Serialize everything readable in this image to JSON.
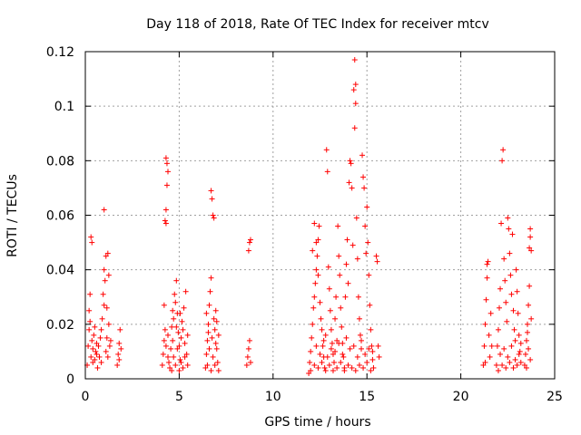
{
  "chart_data": {
    "type": "scatter",
    "title": "Day 118 of 2018, Rate Of TEC Index for receiver mtcv",
    "xlabel": "GPS time / hours",
    "ylabel": "ROTI / TECUs",
    "xlim": [
      0,
      25
    ],
    "ylim": [
      0,
      0.12
    ],
    "xticks": [
      0,
      5,
      10,
      15,
      20,
      25
    ],
    "yticks": [
      0,
      0.02,
      0.04,
      0.06,
      0.08,
      0.1,
      0.12
    ],
    "xtick_labels": [
      "0",
      "5",
      "10",
      "15",
      "20",
      "25"
    ],
    "ytick_labels": [
      "0",
      "0.02",
      "0.04",
      "0.06",
      "0.08",
      "0.1",
      "0.12"
    ],
    "grid": true,
    "marker": "+",
    "marker_color": "#ff0000",
    "series": [
      {
        "points": [
          [
            0.1,
            0.005
          ],
          [
            0.15,
            0.012
          ],
          [
            0.2,
            0.018
          ],
          [
            0.2,
            0.025
          ],
          [
            0.25,
            0.031
          ],
          [
            0.3,
            0.052
          ],
          [
            0.35,
            0.05
          ],
          [
            0.3,
            0.008
          ],
          [
            0.4,
            0.011
          ],
          [
            0.45,
            0.016
          ],
          [
            0.5,
            0.007
          ],
          [
            0.55,
            0.01
          ],
          [
            0.6,
            0.013
          ],
          [
            0.25,
            0.021
          ],
          [
            0.35,
            0.014
          ],
          [
            0.4,
            0.006
          ],
          [
            0.5,
            0.019
          ],
          [
            0.6,
            0.009
          ],
          [
            0.65,
            0.004
          ],
          [
            0.7,
            0.012
          ],
          [
            0.75,
            0.008
          ],
          [
            0.8,
            0.015
          ],
          [
            0.85,
            0.006
          ],
          [
            0.9,
            0.022
          ],
          [
            0.95,
            0.031
          ],
          [
            1.0,
            0.062
          ],
          [
            1.0,
            0.04
          ],
          [
            1.05,
            0.036
          ],
          [
            1.1,
            0.045
          ],
          [
            1.15,
            0.026
          ],
          [
            1.2,
            0.046
          ],
          [
            1.25,
            0.038
          ],
          [
            1.1,
            0.01
          ],
          [
            1.15,
            0.015
          ],
          [
            1.2,
            0.008
          ],
          [
            1.3,
            0.012
          ],
          [
            1.25,
            0.02
          ],
          [
            1.35,
            0.014
          ],
          [
            0.85,
            0.018
          ],
          [
            1.0,
            0.027
          ],
          [
            1.7,
            0.005
          ],
          [
            1.75,
            0.009
          ],
          [
            1.8,
            0.013
          ],
          [
            1.85,
            0.018
          ],
          [
            1.9,
            0.011
          ],
          [
            1.8,
            0.007
          ],
          [
            4.1,
            0.005
          ],
          [
            4.15,
            0.009
          ],
          [
            4.2,
            0.014
          ],
          [
            4.25,
            0.018
          ],
          [
            4.3,
            0.081
          ],
          [
            4.35,
            0.079
          ],
          [
            4.35,
            0.071
          ],
          [
            4.3,
            0.062
          ],
          [
            4.25,
            0.058
          ],
          [
            4.3,
            0.057
          ],
          [
            4.3,
            0.012
          ],
          [
            4.4,
            0.008
          ],
          [
            4.4,
            0.016
          ],
          [
            4.2,
            0.027
          ],
          [
            4.4,
            0.076
          ],
          [
            4.45,
            0.006
          ],
          [
            4.5,
            0.004
          ],
          [
            4.55,
            0.011
          ],
          [
            4.6,
            0.019
          ],
          [
            4.65,
            0.025
          ],
          [
            4.7,
            0.022
          ],
          [
            4.75,
            0.031
          ],
          [
            4.8,
            0.028
          ],
          [
            4.85,
            0.036
          ],
          [
            4.9,
            0.024
          ],
          [
            4.95,
            0.017
          ],
          [
            5.0,
            0.012
          ],
          [
            5.05,
            0.007
          ],
          [
            5.1,
            0.015
          ],
          [
            5.15,
            0.021
          ],
          [
            5.2,
            0.018
          ],
          [
            5.25,
            0.026
          ],
          [
            5.3,
            0.013
          ],
          [
            5.35,
            0.032
          ],
          [
            5.4,
            0.009
          ],
          [
            5.45,
            0.016
          ],
          [
            4.6,
            0.003
          ],
          [
            4.7,
            0.008
          ],
          [
            4.8,
            0.005
          ],
          [
            4.9,
            0.011
          ],
          [
            5.0,
            0.003
          ],
          [
            5.1,
            0.006
          ],
          [
            5.2,
            0.004
          ],
          [
            5.3,
            0.008
          ],
          [
            5.45,
            0.005
          ],
          [
            4.65,
            0.014
          ],
          [
            4.85,
            0.019
          ],
          [
            5.05,
            0.024
          ],
          [
            6.4,
            0.004
          ],
          [
            6.45,
            0.009
          ],
          [
            6.5,
            0.014
          ],
          [
            6.55,
            0.02
          ],
          [
            6.6,
            0.027
          ],
          [
            6.65,
            0.032
          ],
          [
            6.7,
            0.037
          ],
          [
            6.7,
            0.069
          ],
          [
            6.75,
            0.066
          ],
          [
            6.8,
            0.06
          ],
          [
            6.85,
            0.059
          ],
          [
            6.75,
            0.015
          ],
          [
            6.8,
            0.008
          ],
          [
            6.85,
            0.022
          ],
          [
            6.9,
            0.018
          ],
          [
            6.95,
            0.025
          ],
          [
            7.0,
            0.011
          ],
          [
            7.05,
            0.006
          ],
          [
            7.1,
            0.016
          ],
          [
            6.5,
            0.005
          ],
          [
            6.6,
            0.011
          ],
          [
            6.7,
            0.003
          ],
          [
            6.9,
            0.005
          ],
          [
            7.0,
            0.021
          ],
          [
            6.55,
            0.017
          ],
          [
            6.95,
            0.013
          ],
          [
            7.1,
            0.003
          ],
          [
            6.45,
            0.024
          ],
          [
            8.6,
            0.005
          ],
          [
            8.65,
            0.008
          ],
          [
            8.7,
            0.011
          ],
          [
            8.75,
            0.014
          ],
          [
            8.8,
            0.051
          ],
          [
            8.75,
            0.05
          ],
          [
            8.7,
            0.047
          ],
          [
            8.8,
            0.006
          ],
          [
            11.9,
            0.002
          ],
          [
            11.95,
            0.006
          ],
          [
            12.0,
            0.01
          ],
          [
            12.05,
            0.015
          ],
          [
            12.1,
            0.02
          ],
          [
            12.15,
            0.026
          ],
          [
            12.2,
            0.03
          ],
          [
            12.25,
            0.035
          ],
          [
            12.3,
            0.04
          ],
          [
            12.35,
            0.045
          ],
          [
            12.4,
            0.051
          ],
          [
            12.45,
            0.056
          ],
          [
            12.2,
            0.057
          ],
          [
            12.3,
            0.05
          ],
          [
            12.1,
            0.047
          ],
          [
            12.4,
            0.038
          ],
          [
            12.5,
            0.028
          ],
          [
            12.55,
            0.022
          ],
          [
            12.6,
            0.018
          ],
          [
            12.65,
            0.012
          ],
          [
            12.7,
            0.008
          ],
          [
            12.75,
            0.004
          ],
          [
            12.8,
            0.016
          ],
          [
            12.85,
            0.084
          ],
          [
            12.9,
            0.076
          ],
          [
            12.95,
            0.041
          ],
          [
            13.0,
            0.033
          ],
          [
            13.05,
            0.025
          ],
          [
            13.1,
            0.018
          ],
          [
            13.15,
            0.013
          ],
          [
            13.2,
            0.009
          ],
          [
            13.25,
            0.006
          ],
          [
            13.3,
            0.022
          ],
          [
            13.35,
            0.03
          ],
          [
            13.4,
            0.014
          ],
          [
            13.45,
            0.056
          ],
          [
            13.5,
            0.045
          ],
          [
            13.55,
            0.038
          ],
          [
            13.6,
            0.026
          ],
          [
            13.65,
            0.019
          ],
          [
            13.7,
            0.013
          ],
          [
            13.75,
            0.008
          ],
          [
            13.8,
            0.004
          ],
          [
            13.85,
            0.03
          ],
          [
            13.9,
            0.042
          ],
          [
            13.95,
            0.051
          ],
          [
            14.0,
            0.035
          ],
          [
            14.05,
            0.072
          ],
          [
            14.1,
            0.08
          ],
          [
            14.15,
            0.079
          ],
          [
            14.2,
            0.07
          ],
          [
            14.25,
            0.049
          ],
          [
            14.3,
            0.106
          ],
          [
            14.35,
            0.117
          ],
          [
            14.4,
            0.108
          ],
          [
            14.4,
            0.101
          ],
          [
            14.35,
            0.092
          ],
          [
            14.45,
            0.059
          ],
          [
            14.5,
            0.044
          ],
          [
            14.55,
            0.03
          ],
          [
            14.6,
            0.022
          ],
          [
            14.65,
            0.016
          ],
          [
            14.7,
            0.011
          ],
          [
            14.75,
            0.082
          ],
          [
            14.8,
            0.074
          ],
          [
            14.85,
            0.07
          ],
          [
            14.9,
            0.056
          ],
          [
            14.95,
            0.046
          ],
          [
            15.0,
            0.063
          ],
          [
            15.05,
            0.05
          ],
          [
            15.1,
            0.038
          ],
          [
            15.15,
            0.027
          ],
          [
            15.2,
            0.018
          ],
          [
            15.25,
            0.012
          ],
          [
            15.3,
            0.007
          ],
          [
            15.35,
            0.004
          ],
          [
            15.5,
            0.045
          ],
          [
            15.55,
            0.043
          ],
          [
            15.6,
            0.012
          ],
          [
            15.65,
            0.008
          ],
          [
            12.0,
            0.003
          ],
          [
            12.2,
            0.005
          ],
          [
            12.4,
            0.004
          ],
          [
            12.6,
            0.006
          ],
          [
            12.8,
            0.003
          ],
          [
            13.0,
            0.005
          ],
          [
            13.2,
            0.003
          ],
          [
            13.4,
            0.004
          ],
          [
            13.6,
            0.006
          ],
          [
            13.8,
            0.003
          ],
          [
            14.0,
            0.005
          ],
          [
            14.2,
            0.004
          ],
          [
            14.4,
            0.003
          ],
          [
            14.6,
            0.005
          ],
          [
            14.8,
            0.004
          ],
          [
            15.0,
            0.006
          ],
          [
            15.2,
            0.003
          ],
          [
            12.3,
            0.012
          ],
          [
            12.7,
            0.014
          ],
          [
            13.1,
            0.011
          ],
          [
            13.5,
            0.013
          ],
          [
            13.9,
            0.015
          ],
          [
            14.3,
            0.012
          ],
          [
            14.7,
            0.014
          ],
          [
            15.1,
            0.011
          ],
          [
            12.5,
            0.009
          ],
          [
            12.9,
            0.008
          ],
          [
            13.3,
            0.01
          ],
          [
            13.7,
            0.009
          ],
          [
            14.1,
            0.011
          ],
          [
            14.5,
            0.008
          ],
          [
            14.9,
            0.009
          ],
          [
            15.3,
            0.01
          ],
          [
            21.2,
            0.005
          ],
          [
            21.25,
            0.012
          ],
          [
            21.3,
            0.02
          ],
          [
            21.35,
            0.029
          ],
          [
            21.4,
            0.037
          ],
          [
            21.45,
            0.043
          ],
          [
            21.4,
            0.042
          ],
          [
            21.5,
            0.016
          ],
          [
            21.55,
            0.008
          ],
          [
            21.6,
            0.024
          ],
          [
            21.65,
            0.012
          ],
          [
            21.3,
            0.006
          ],
          [
            21.9,
            0.005
          ],
          [
            21.95,
            0.012
          ],
          [
            22.0,
            0.018
          ],
          [
            22.05,
            0.026
          ],
          [
            22.1,
            0.033
          ],
          [
            22.15,
            0.057
          ],
          [
            22.2,
            0.08
          ],
          [
            22.25,
            0.084
          ],
          [
            22.3,
            0.044
          ],
          [
            22.35,
            0.036
          ],
          [
            22.4,
            0.028
          ],
          [
            22.45,
            0.021
          ],
          [
            22.5,
            0.059
          ],
          [
            22.55,
            0.055
          ],
          [
            22.6,
            0.046
          ],
          [
            22.65,
            0.038
          ],
          [
            22.7,
            0.031
          ],
          [
            22.75,
            0.053
          ],
          [
            22.8,
            0.025
          ],
          [
            22.85,
            0.018
          ],
          [
            22.9,
            0.014
          ],
          [
            22.95,
            0.04
          ],
          [
            23.0,
            0.032
          ],
          [
            23.05,
            0.024
          ],
          [
            23.1,
            0.016
          ],
          [
            23.15,
            0.01
          ],
          [
            23.2,
            0.006
          ],
          [
            22.0,
            0.003
          ],
          [
            22.2,
            0.005
          ],
          [
            22.4,
            0.004
          ],
          [
            22.6,
            0.006
          ],
          [
            22.8,
            0.004
          ],
          [
            23.0,
            0.005
          ],
          [
            22.1,
            0.009
          ],
          [
            22.3,
            0.011
          ],
          [
            22.5,
            0.008
          ],
          [
            22.7,
            0.012
          ],
          [
            22.9,
            0.007
          ],
          [
            23.1,
            0.009
          ],
          [
            23.2,
            0.013
          ],
          [
            23.4,
            0.005
          ],
          [
            23.45,
            0.009
          ],
          [
            23.5,
            0.014
          ],
          [
            23.55,
            0.02
          ],
          [
            23.6,
            0.027
          ],
          [
            23.65,
            0.034
          ],
          [
            23.65,
            0.048
          ],
          [
            23.7,
            0.055
          ],
          [
            23.7,
            0.052
          ],
          [
            23.75,
            0.047
          ],
          [
            23.6,
            0.011
          ],
          [
            23.7,
            0.007
          ],
          [
            23.5,
            0.004
          ],
          [
            23.55,
            0.017
          ],
          [
            23.75,
            0.022
          ]
        ]
      }
    ]
  }
}
